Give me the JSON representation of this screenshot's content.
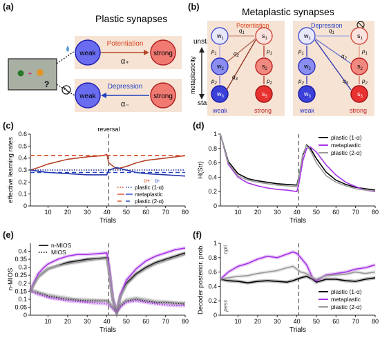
{
  "figure": {
    "panel_a": {
      "label": "(a)",
      "title": "Plastic synapses",
      "weak": "weak",
      "strong": "strong",
      "potentiation": "Potentiation",
      "depression": "Depression",
      "alpha_plus": "α₊",
      "alpha_minus": "α₋",
      "question": "?",
      "colors": {
        "potentiation": "#d9431e",
        "depression": "#1f3fbf",
        "weak_fill": "#6a6cf0",
        "strong_fill": "#f07a72",
        "box": "#f6e3d4"
      }
    },
    "panel_b": {
      "label": "(b)",
      "title": "Metaplastic synapses",
      "unstable": "unstable",
      "stable": "stable",
      "axis": "metaplasticity",
      "potentiation": "Potentiation",
      "depression": "Depression",
      "weak": "weak",
      "strong": "strong",
      "w1": "w",
      "w1s": "1",
      "w2": "w",
      "w2s": "2",
      "w3": "w",
      "w3s": "3",
      "s1": "s",
      "s1s": "1",
      "s2": "s",
      "s2s": "2",
      "s3": "s",
      "s3s": "3",
      "p1": "p",
      "p1s": "1",
      "p2": "p",
      "p2s": "2",
      "q1": "q",
      "q1s": "1",
      "q2": "q",
      "q2s": "2",
      "q3": "q",
      "q3s": "3"
    }
  },
  "chart_data": [
    {
      "id": "c",
      "panel_label": "(c)",
      "type": "line",
      "xlabel": "Trials",
      "ylabel": "effective learning rates",
      "annotation": "reversal",
      "xlim": [
        1,
        80
      ],
      "ylim": [
        0.0,
        0.6
      ],
      "xticks": [
        10,
        20,
        30,
        40,
        50,
        60,
        70,
        80
      ],
      "yticks": [
        0.0,
        0.1,
        0.2,
        0.3,
        0.4,
        0.5,
        0.6
      ],
      "legend_alpha": [
        "α+",
        "α-"
      ],
      "legend": [
        "plastic (1-α)",
        "metaplastic",
        "plastic (2-α)"
      ],
      "x": [
        1,
        5,
        10,
        20,
        30,
        38,
        40,
        41,
        45,
        50,
        55,
        60,
        70,
        80
      ],
      "series": [
        {
          "name": "plastic (1-α) α+",
          "color": "#d9431e",
          "dash": "dotted",
          "values": [
            0.3,
            0.3,
            0.3,
            0.3,
            0.3,
            0.3,
            0.3,
            0.3,
            0.3,
            0.3,
            0.3,
            0.3,
            0.3,
            0.3
          ]
        },
        {
          "name": "plastic (1-α) α-",
          "color": "#1f3fbf",
          "dash": "dotted",
          "values": [
            0.3,
            0.3,
            0.3,
            0.3,
            0.3,
            0.3,
            0.3,
            0.3,
            0.3,
            0.3,
            0.3,
            0.3,
            0.3,
            0.3
          ]
        },
        {
          "name": "metaplastic α+",
          "color": "#b5442a",
          "dash": "solid",
          "values": [
            0.3,
            0.32,
            0.35,
            0.39,
            0.41,
            0.42,
            0.43,
            0.36,
            0.31,
            0.33,
            0.36,
            0.38,
            0.4,
            0.42
          ]
        },
        {
          "name": "metaplastic α-",
          "color": "#2233aa",
          "dash": "solid",
          "values": [
            0.3,
            0.29,
            0.28,
            0.27,
            0.26,
            0.26,
            0.26,
            0.3,
            0.32,
            0.3,
            0.28,
            0.27,
            0.26,
            0.25
          ]
        },
        {
          "name": "plastic (2-α) α+",
          "color": "#d9431e",
          "dash": "dashed",
          "values": [
            0.42,
            0.42,
            0.42,
            0.42,
            0.42,
            0.42,
            0.42,
            0.42,
            0.42,
            0.42,
            0.42,
            0.42,
            0.42,
            0.42
          ]
        },
        {
          "name": "plastic (2-α) α-",
          "color": "#1f3fbf",
          "dash": "dashed",
          "values": [
            0.28,
            0.28,
            0.28,
            0.28,
            0.28,
            0.28,
            0.28,
            0.28,
            0.28,
            0.28,
            0.28,
            0.28,
            0.28,
            0.28
          ]
        }
      ]
    },
    {
      "id": "d",
      "panel_label": "(d)",
      "type": "line",
      "xlabel": "Trials",
      "ylabel": "H(Str)",
      "xlim": [
        1,
        80
      ],
      "ylim": [
        0,
        1
      ],
      "xticks": [
        10,
        20,
        30,
        40,
        50,
        60,
        70,
        80
      ],
      "yticks": [
        0,
        0.2,
        0.4,
        0.6,
        0.8,
        1
      ],
      "x": [
        1,
        5,
        10,
        15,
        20,
        25,
        30,
        35,
        40,
        41,
        43,
        45,
        47,
        50,
        55,
        60,
        65,
        70,
        75,
        80
      ],
      "series": [
        {
          "name": "plastic (1-α)",
          "color": "#000000",
          "values": [
            1.0,
            0.62,
            0.45,
            0.38,
            0.35,
            0.33,
            0.31,
            0.3,
            0.29,
            0.4,
            0.7,
            0.85,
            0.8,
            0.66,
            0.47,
            0.36,
            0.3,
            0.26,
            0.24,
            0.22
          ]
        },
        {
          "name": "metaplastic",
          "color": "#a632e6",
          "values": [
            1.0,
            0.58,
            0.4,
            0.32,
            0.28,
            0.25,
            0.23,
            0.22,
            0.2,
            0.3,
            0.62,
            0.8,
            0.82,
            0.75,
            0.57,
            0.43,
            0.33,
            0.27,
            0.22,
            0.2
          ]
        },
        {
          "name": "plastic (2-α)",
          "color": "#9a9a9a",
          "values": [
            1.0,
            0.6,
            0.42,
            0.36,
            0.33,
            0.31,
            0.29,
            0.28,
            0.27,
            0.38,
            0.72,
            0.84,
            0.77,
            0.6,
            0.42,
            0.33,
            0.28,
            0.24,
            0.22,
            0.21
          ]
        }
      ]
    },
    {
      "id": "e",
      "panel_label": "(e)",
      "type": "line",
      "xlabel": "Trials",
      "ylabel": "n-MIOS",
      "xlim": [
        1,
        80
      ],
      "ylim": [
        0,
        0.45
      ],
      "xticks": [
        10,
        20,
        30,
        40,
        50,
        60,
        70,
        80
      ],
      "yticks": [
        0,
        0.05,
        0.1,
        0.15,
        0.2,
        0.25,
        0.3,
        0.35,
        0.4
      ],
      "legend": [
        "n-MIOS",
        "MIOS"
      ],
      "x": [
        1,
        3,
        5,
        8,
        10,
        15,
        20,
        25,
        30,
        35,
        40,
        41,
        43,
        45,
        47,
        50,
        55,
        60,
        65,
        70,
        75,
        80
      ],
      "series": [
        {
          "name": "n-MIOS plastic (1-α)",
          "color": "#000000",
          "dash": "solid",
          "values": [
            0.15,
            0.2,
            0.24,
            0.27,
            0.29,
            0.31,
            0.33,
            0.34,
            0.35,
            0.355,
            0.36,
            0.3,
            0.1,
            0.02,
            0.12,
            0.2,
            0.26,
            0.3,
            0.33,
            0.35,
            0.37,
            0.39
          ]
        },
        {
          "name": "n-MIOS metaplastic",
          "color": "#a632e6",
          "dash": "solid",
          "values": [
            0.15,
            0.21,
            0.26,
            0.3,
            0.32,
            0.35,
            0.37,
            0.38,
            0.38,
            0.385,
            0.39,
            0.32,
            0.11,
            0.02,
            0.13,
            0.22,
            0.29,
            0.34,
            0.37,
            0.39,
            0.41,
            0.42
          ]
        },
        {
          "name": "n-MIOS plastic (2-α)",
          "color": "#9a9a9a",
          "dash": "solid",
          "values": [
            0.15,
            0.2,
            0.24,
            0.27,
            0.29,
            0.31,
            0.32,
            0.33,
            0.34,
            0.35,
            0.355,
            0.29,
            0.1,
            0.02,
            0.12,
            0.19,
            0.25,
            0.29,
            0.32,
            0.34,
            0.36,
            0.38
          ]
        },
        {
          "name": "MIOS plastic (1-α)",
          "color": "#000000",
          "dash": "dotted",
          "values": [
            0.15,
            0.15,
            0.14,
            0.13,
            0.12,
            0.11,
            0.1,
            0.095,
            0.09,
            0.09,
            0.09,
            0.08,
            0.05,
            0.02,
            0.06,
            0.09,
            0.1,
            0.09,
            0.08,
            0.08,
            0.075,
            0.07
          ]
        },
        {
          "name": "MIOS metaplastic",
          "color": "#a632e6",
          "dash": "dotted",
          "values": [
            0.15,
            0.14,
            0.13,
            0.12,
            0.11,
            0.1,
            0.09,
            0.085,
            0.08,
            0.075,
            0.07,
            0.065,
            0.04,
            0.02,
            0.05,
            0.08,
            0.09,
            0.08,
            0.07,
            0.065,
            0.06,
            0.06
          ]
        },
        {
          "name": "MIOS plastic (2-α)",
          "color": "#9a9a9a",
          "dash": "dotted",
          "values": [
            0.15,
            0.15,
            0.145,
            0.135,
            0.13,
            0.12,
            0.11,
            0.1,
            0.1,
            0.095,
            0.09,
            0.085,
            0.05,
            0.02,
            0.07,
            0.1,
            0.11,
            0.1,
            0.09,
            0.085,
            0.08,
            0.08
          ]
        }
      ]
    },
    {
      "id": "f",
      "panel_label": "(f)",
      "type": "line",
      "xlabel": "Trials",
      "ylabel": "Decoder posterior. prob.",
      "yannot_top": "opti",
      "yannot_bottom": "pess",
      "xlim": [
        1,
        80
      ],
      "ylim": [
        0,
        1
      ],
      "xticks": [
        10,
        20,
        30,
        40,
        50,
        60,
        70,
        80
      ],
      "yticks": [
        0,
        0.2,
        0.4,
        0.6,
        0.8,
        1
      ],
      "x": [
        1,
        5,
        10,
        15,
        20,
        25,
        30,
        35,
        38,
        40,
        42,
        45,
        48,
        50,
        55,
        60,
        65,
        70,
        75,
        80
      ],
      "series": [
        {
          "name": "plastic (1-α)",
          "color": "#000000",
          "values": [
            0.5,
            0.48,
            0.47,
            0.45,
            0.47,
            0.48,
            0.47,
            0.46,
            0.48,
            0.5,
            0.52,
            0.54,
            0.5,
            0.46,
            0.5,
            0.5,
            0.48,
            0.47,
            0.5,
            0.52
          ]
        },
        {
          "name": "metaplastic",
          "color": "#a632e6",
          "values": [
            0.5,
            0.6,
            0.68,
            0.72,
            0.78,
            0.82,
            0.8,
            0.85,
            0.88,
            0.86,
            0.8,
            0.7,
            0.52,
            0.48,
            0.56,
            0.58,
            0.6,
            0.64,
            0.66,
            0.7
          ]
        },
        {
          "name": "plastic (2-α)",
          "color": "#9a9a9a",
          "values": [
            0.5,
            0.52,
            0.54,
            0.55,
            0.58,
            0.6,
            0.62,
            0.66,
            0.68,
            0.64,
            0.6,
            0.58,
            0.52,
            0.5,
            0.55,
            0.56,
            0.57,
            0.6,
            0.58,
            0.6
          ]
        }
      ]
    }
  ]
}
